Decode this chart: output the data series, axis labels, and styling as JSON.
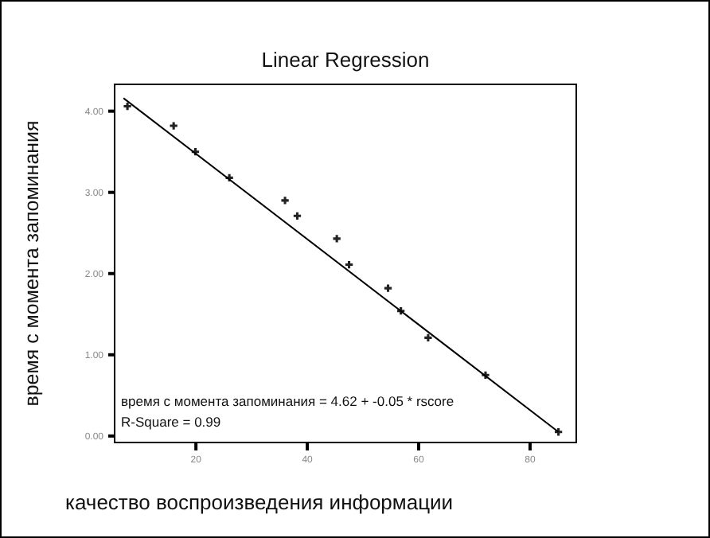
{
  "chart_data": {
    "type": "scatter",
    "title": "Linear Regression",
    "xlabel": "качество воспроизведения информации",
    "ylabel": "время с момента запоминания",
    "xlim": [
      5.4,
      88.3
    ],
    "ylim": [
      -0.08,
      4.33
    ],
    "xticks": [
      20,
      40,
      60,
      80
    ],
    "yticks": [
      {
        "value": 0,
        "label": "0.00"
      },
      {
        "value": 1,
        "label": "1.00"
      },
      {
        "value": 2,
        "label": "2.00"
      },
      {
        "value": 3,
        "label": "3.00"
      },
      {
        "value": 4,
        "label": "4.00"
      }
    ],
    "grid": false,
    "series": [
      {
        "color": "#222222",
        "marker": "cross",
        "x": [
          7.7,
          16,
          19.9,
          26,
          36,
          38.2,
          45.3,
          47.5,
          54.5,
          56.8,
          61.7,
          72,
          85.1
        ],
        "values": [
          4.06,
          3.82,
          3.5,
          3.18,
          2.9,
          2.71,
          2.43,
          2.11,
          1.82,
          1.54,
          1.21,
          0.75,
          0.05
        ]
      },
      {
        "type": "line",
        "color": "#000000",
        "x": [
          7,
          85.1
        ],
        "values": [
          4.16,
          0.05
        ]
      }
    ],
    "annotations": [
      "время с момента запоминания = 4.62 + -0.05 * rscore",
      "R-Square = 0.99"
    ]
  }
}
